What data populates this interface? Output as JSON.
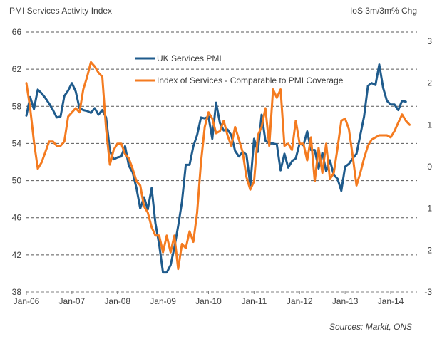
{
  "chart_data": {
    "type": "line",
    "title": "PMI Services Activity Index",
    "ylabel": "PMI Services Activity Index",
    "y2label": "IoS 3m/3m% Chg",
    "xlabel": "",
    "source": "Sources: Markit, ONS",
    "ylim": [
      38,
      66
    ],
    "y2lim": [
      -3,
      3
    ],
    "yticks": [
      "38",
      "42",
      "46",
      "50",
      "54",
      "58",
      "62",
      "66"
    ],
    "y2ticks": [
      "-3",
      "-2",
      "-1",
      "0",
      "1",
      "2",
      "3"
    ],
    "xticks": [
      "Jan-06",
      "Jan-07",
      "Jan-08",
      "Jan-09",
      "Jan-10",
      "Jan-11",
      "Jan-12",
      "Jan-13",
      "Jan-14"
    ],
    "grid": "horizontal-dashed",
    "legend": "top-center",
    "x_start": "Jan-06",
    "x_unit": "month",
    "series": [
      {
        "name": "UK Services PMI",
        "axis": "left",
        "color": "#1f5b8c",
        "values": [
          57.0,
          59.0,
          57.7,
          59.8,
          59.4,
          58.9,
          58.3,
          57.6,
          56.8,
          56.9,
          59.1,
          59.7,
          60.5,
          59.6,
          57.8,
          57.6,
          57.5,
          57.3,
          57.8,
          57.1,
          57.6,
          56.8,
          53.2,
          52.3,
          52.5,
          52.6,
          53.7,
          51.6,
          50.9,
          49.2,
          47.0,
          48.2,
          46.9,
          49.2,
          45.4,
          43.1,
          40.1,
          40.1,
          40.9,
          42.8,
          45.1,
          47.7,
          51.7,
          51.7,
          53.7,
          54.9,
          56.8,
          56.7,
          56.9,
          54.5,
          58.4,
          56.2,
          55.4,
          55.5,
          54.9,
          53.2,
          52.6,
          53.1,
          52.8,
          49.5,
          54.5,
          53.1,
          57.1,
          54.3,
          54.0,
          54.0,
          53.9,
          51.1,
          52.9,
          51.4,
          52.1,
          52.4,
          54.0,
          53.8,
          55.3,
          53.3,
          53.3,
          51.3,
          53.0,
          51.0,
          52.2,
          50.6,
          50.2,
          48.9,
          51.5,
          51.8,
          52.4,
          52.9,
          54.9,
          56.9,
          60.2,
          60.5,
          60.3,
          62.5,
          60.0,
          58.6,
          58.2,
          58.2,
          57.6,
          58.6,
          58.5
        ]
      },
      {
        "name": "Index of Services - Comparable to PMI Coverage",
        "axis": "right",
        "color": "#f47b20",
        "values": [
          2.0,
          1.4,
          0.6,
          -0.05,
          0.1,
          0.35,
          0.6,
          0.6,
          0.5,
          0.5,
          0.6,
          1.2,
          1.3,
          1.4,
          1.3,
          1.85,
          2.15,
          2.5,
          2.4,
          2.25,
          2.15,
          0.9,
          0.05,
          0.4,
          0.55,
          0.55,
          0.3,
          0.2,
          -0.05,
          -0.35,
          -0.45,
          -0.95,
          -1.1,
          -1.45,
          -1.65,
          -1.65,
          -2.05,
          -1.65,
          -2.05,
          -1.65,
          -2.45,
          -1.85,
          -1.95,
          -1.55,
          -1.8,
          -1.1,
          0.1,
          0.95,
          1.3,
          1.15,
          0.8,
          0.85,
          1.1,
          0.75,
          0.5,
          0.95,
          0.65,
          0.35,
          -0.25,
          -0.55,
          -0.35,
          0.75,
          0.95,
          1.4,
          0.5,
          1.85,
          1.65,
          1.85,
          0.5,
          0.55,
          0.4,
          1.1,
          0.55,
          0.55,
          0.15,
          0.7,
          -0.35,
          0.45,
          -0.15,
          0.55,
          -0.3,
          -0.15,
          0.45,
          1.1,
          1.15,
          0.9,
          0.25,
          -0.45,
          -0.15,
          0.2,
          0.5,
          0.65,
          0.7,
          0.75,
          0.75,
          0.75,
          0.7,
          0.85,
          1.05,
          1.25,
          1.1,
          1.0
        ]
      }
    ]
  }
}
